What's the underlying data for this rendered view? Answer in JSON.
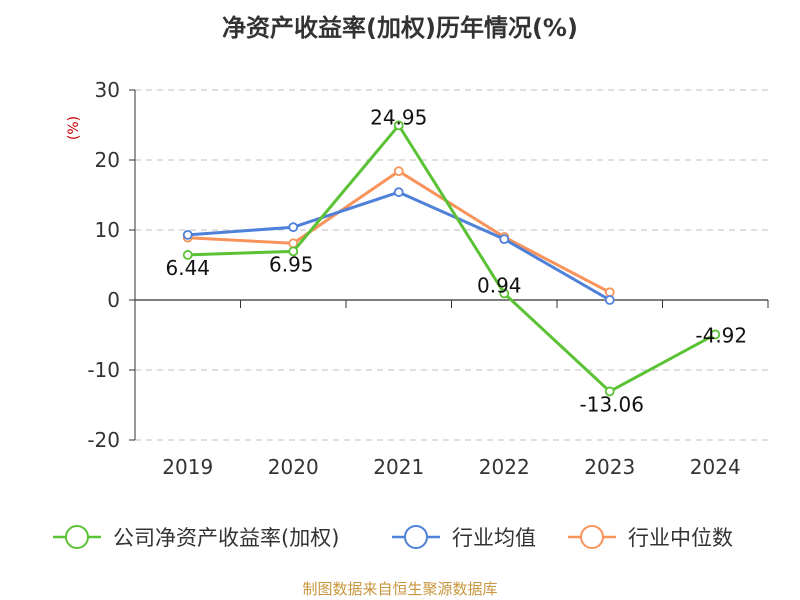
{
  "title": "净资产收益率(加权)历年情况(%)",
  "source": "制图数据来自恒生聚源数据库",
  "chart_data": {
    "type": "line",
    "title": "净资产收益率(加权)历年情况(%)",
    "categories": [
      "2019",
      "2020",
      "2021",
      "2022",
      "2023",
      "2024"
    ],
    "ylabel": "(%)",
    "ylim": [
      -20,
      30
    ],
    "yticks": [
      30,
      20,
      10,
      0,
      -10,
      -20
    ],
    "grid": true,
    "legend_position": "bottom",
    "series": [
      {
        "name": "公司净资产收益率(加权)",
        "color": "#5bc236",
        "values": [
          6.44,
          6.95,
          24.95,
          0.94,
          -13.06,
          -4.92
        ],
        "labels": [
          "6.44",
          "6.95",
          "24.95",
          "0.94",
          "-13.06",
          "-4.92"
        ]
      },
      {
        "name": "行业均值",
        "color": "#4f81d9",
        "values": [
          9.3,
          10.4,
          15.4,
          8.7,
          0.0,
          null
        ]
      },
      {
        "name": "行业中位数",
        "color": "#f7935b",
        "values": [
          8.9,
          8.1,
          18.4,
          9.0,
          1.1,
          null
        ]
      }
    ]
  }
}
